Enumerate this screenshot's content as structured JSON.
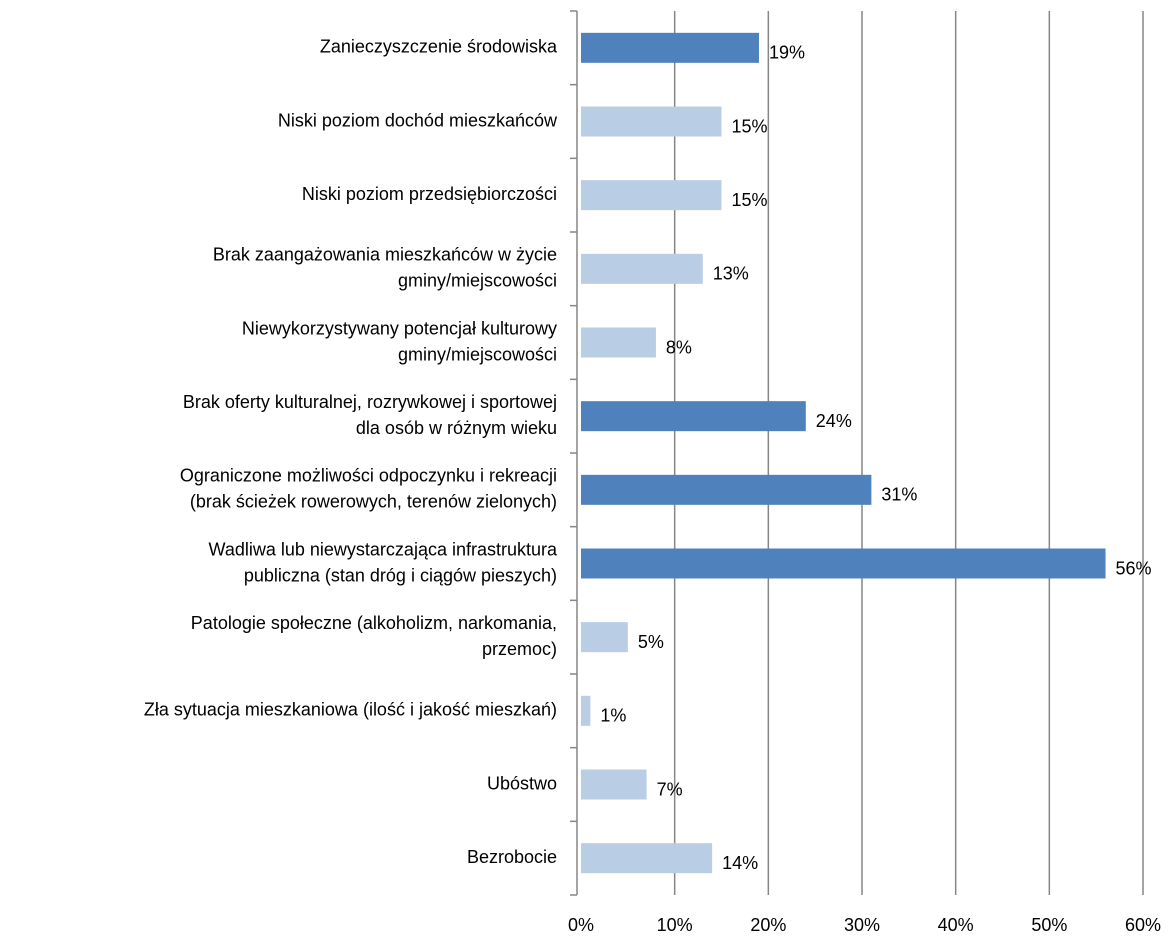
{
  "chart_data": {
    "type": "barh",
    "categories": [
      [
        "Zanieczyszczenie środowiska"
      ],
      [
        "Niski poziom dochód mieszkańców"
      ],
      [
        "Niski poziom przedsiębiorczości"
      ],
      [
        "Brak zaangażowania mieszkańców w życie",
        "gminy/miejscowości"
      ],
      [
        "Niewykorzystywany potencjał kulturowy",
        "gminy/miejscowości"
      ],
      [
        "Brak oferty kulturalnej, rozrywkowej i sportowej",
        "dla osób w różnym wieku"
      ],
      [
        "Ograniczone możliwości odpoczynku i rekreacji",
        "(brak ścieżek rowerowych, terenów zielonych)"
      ],
      [
        "Wadliwa  lub niewystarczająca infrastruktura",
        "publiczna (stan dróg i ciągów pieszych)"
      ],
      [
        "Patologie społeczne (alkoholizm, narkomania,",
        "przemoc)"
      ],
      [
        "Zła sytuacja mieszkaniowa (ilość i jakość mieszkań)"
      ],
      [
        "Ubóstwo"
      ],
      [
        "Bezrobocie"
      ]
    ],
    "values": [
      19,
      15,
      15,
      13,
      8,
      24,
      31,
      56,
      5,
      1,
      7,
      14
    ],
    "value_labels": [
      "19%",
      "15%",
      "15%",
      "13%",
      "8%",
      "24%",
      "31%",
      "56%",
      "5%",
      "1%",
      "7%",
      "14%"
    ],
    "colors": [
      "#4f81bd",
      "#b9cde5",
      "#b9cde5",
      "#b9cde5",
      "#b9cde5",
      "#4f81bd",
      "#4f81bd",
      "#4f81bd",
      "#b9cde5",
      "#b9cde5",
      "#b9cde5",
      "#b9cde5"
    ],
    "xlim": [
      0,
      60
    ],
    "xticks": [
      {
        "value": 0,
        "label": "0%"
      },
      {
        "value": 10,
        "label": "10%"
      },
      {
        "value": 20,
        "label": "20%"
      },
      {
        "value": 30,
        "label": "30%"
      },
      {
        "value": 40,
        "label": "40%"
      },
      {
        "value": 50,
        "label": "50%"
      },
      {
        "value": 60,
        "label": "60%"
      }
    ],
    "grid": true
  }
}
